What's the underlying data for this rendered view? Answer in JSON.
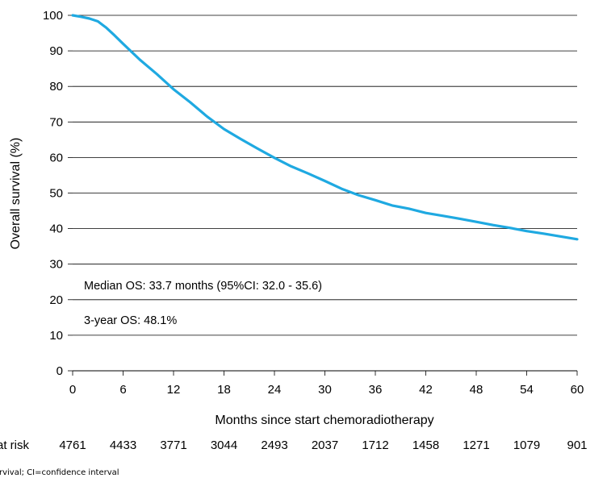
{
  "chart_data": {
    "type": "line",
    "xlabel": "Months since start chemoradiotherapy",
    "ylabel": "Overall survival (%)",
    "xlim": [
      0,
      60
    ],
    "ylim": [
      0,
      100
    ],
    "xticks": [
      0,
      6,
      12,
      18,
      24,
      30,
      36,
      42,
      48,
      54,
      60
    ],
    "yticks": [
      0,
      10,
      20,
      30,
      40,
      50,
      60,
      70,
      80,
      90,
      100
    ],
    "grid": "horizontal",
    "line_color": "#1fa9e1",
    "series": [
      {
        "x": [
          0,
          1,
          2,
          3,
          4,
          5,
          6,
          8,
          10,
          12,
          14,
          16,
          18,
          20,
          22,
          24,
          26,
          28,
          30,
          32,
          34,
          36,
          38,
          40,
          42,
          44,
          46,
          48,
          50,
          52,
          54,
          56,
          58,
          60
        ],
        "y": [
          100,
          99.6,
          99.1,
          98.3,
          96.5,
          94.3,
          92.0,
          87.5,
          83.5,
          79.2,
          75.5,
          71.5,
          68.0,
          65.2,
          62.5,
          59.9,
          57.5,
          55.5,
          53.4,
          51.2,
          49.4,
          48.0,
          46.5,
          45.6,
          44.4,
          43.6,
          42.8,
          41.9,
          41.0,
          40.2,
          39.3,
          38.6,
          37.8,
          37.0
        ]
      }
    ],
    "annotations": [
      "Median OS: 33.7 months  (95%CI:  32.0 - 35.6)",
      "3-year OS: 48.1%"
    ],
    "at_risk": {
      "label": "at risk",
      "x": [
        0,
        6,
        12,
        18,
        24,
        30,
        36,
        42,
        48,
        54,
        60
      ],
      "values": [
        "4761",
        "4433",
        "3771",
        "3044",
        "2493",
        "2037",
        "1712",
        "1458",
        "1271",
        "1079",
        "901"
      ]
    },
    "footnote": "rvival; CI=confidence interval"
  }
}
